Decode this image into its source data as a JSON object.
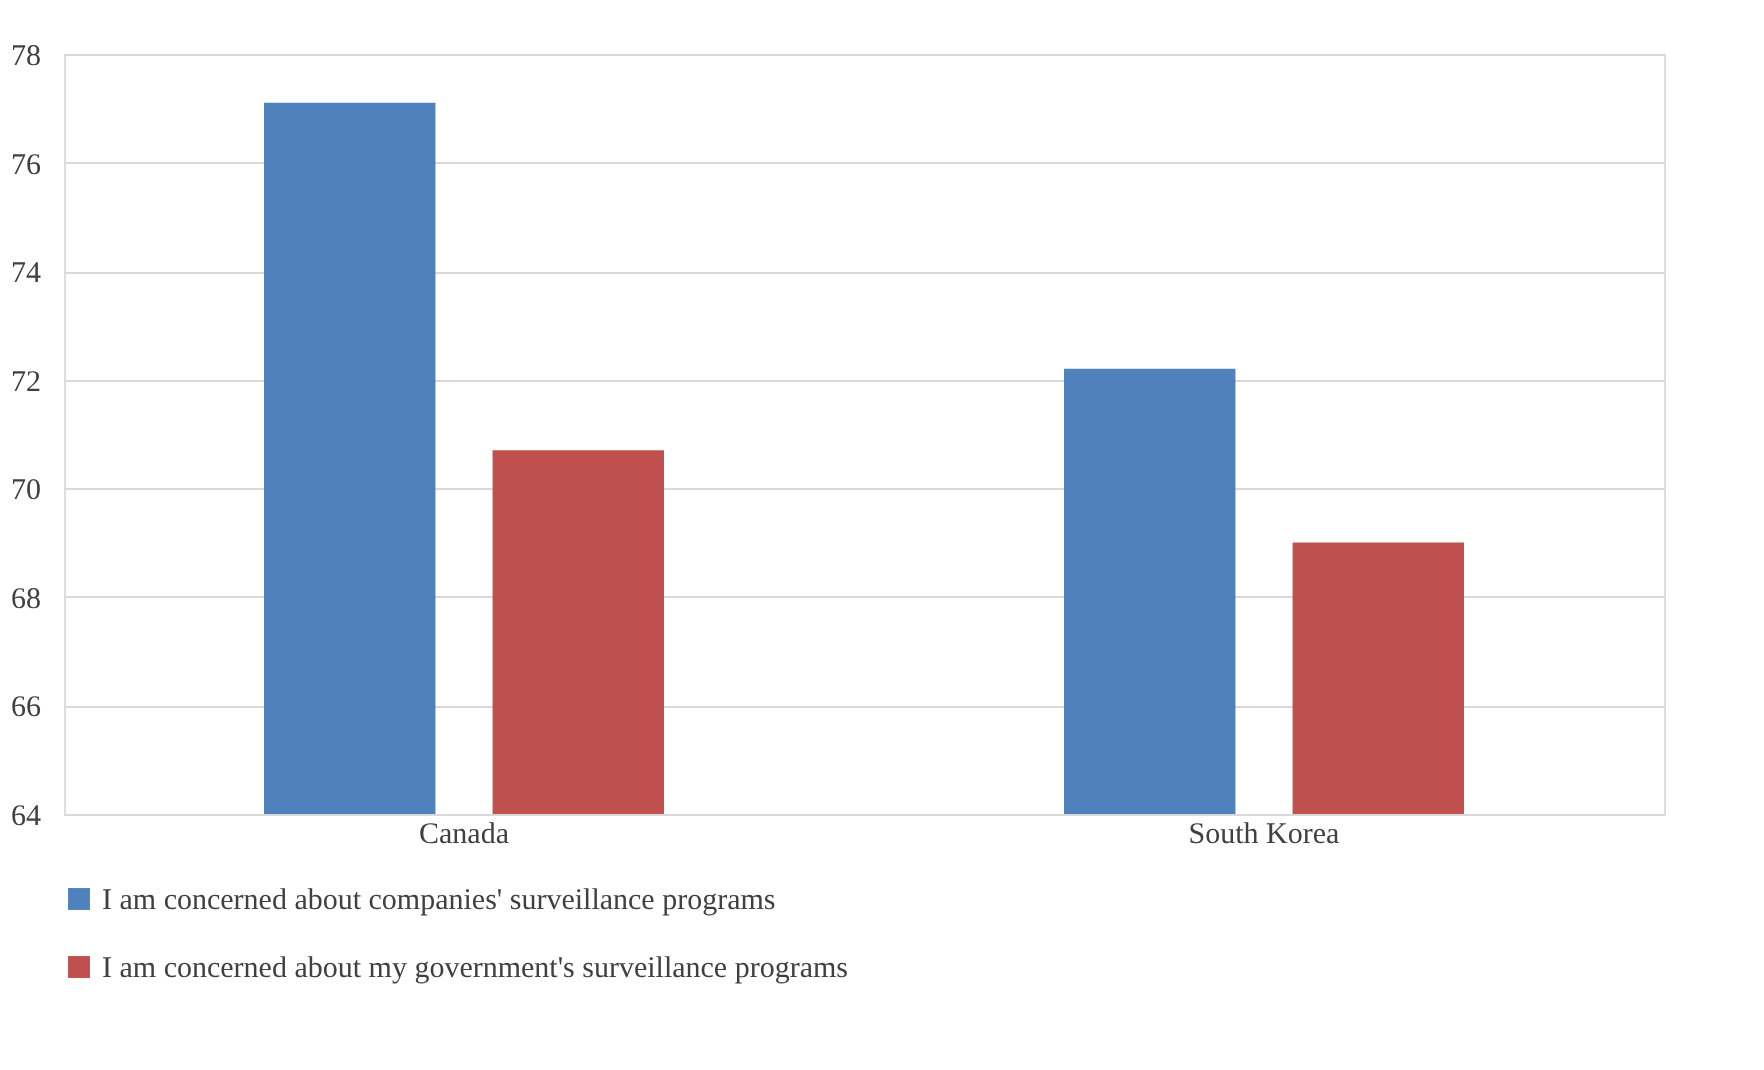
{
  "chart_data": {
    "type": "bar",
    "categories": [
      "Canada",
      "South Korea"
    ],
    "series": [
      {
        "name": "I am concerned about companies' surveillance programs",
        "color": "#4f81bd",
        "values": [
          77.1,
          72.2
        ]
      },
      {
        "name": "I am concerned about my government's surveillance programs",
        "color": "#c0504d",
        "values": [
          70.7,
          69.0
        ]
      }
    ],
    "ylim": [
      64,
      78
    ],
    "yticks": [
      64,
      66,
      68,
      70,
      72,
      74,
      76,
      78
    ],
    "grid": "y",
    "legend": "bottom"
  }
}
